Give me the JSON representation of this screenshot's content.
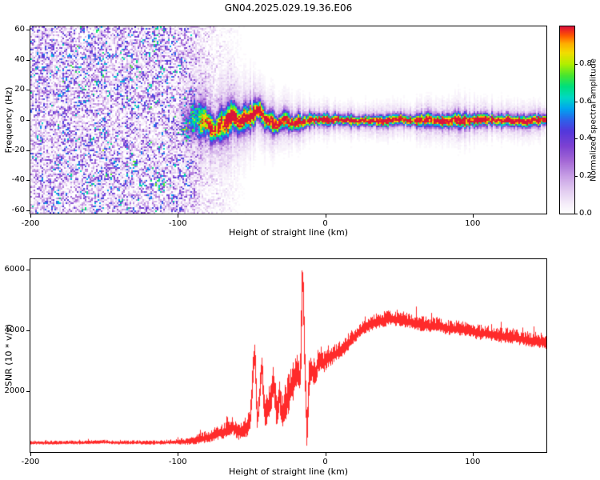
{
  "title": "GN04.2025.029.19.36.E06",
  "chart_data": [
    {
      "type": "heatmap",
      "title": "GN04.2025.029.19.36.E06",
      "xlabel": "Height of straight line (km)",
      "ylabel": "Frequency (Hz)",
      "xlim": [
        -200,
        150
      ],
      "ylim": [
        -62,
        62
      ],
      "xticks": [
        -200,
        -100,
        0,
        100
      ],
      "yticks": [
        -60,
        -40,
        -20,
        0,
        20,
        40,
        60
      ],
      "grid": false,
      "colorbar": {
        "label": "Normalized spectral amplitude",
        "lim": [
          0,
          1
        ],
        "ticks": [
          0.0,
          0.2,
          0.4,
          0.6,
          0.8
        ],
        "stops": [
          [
            0.0,
            "#ffffff"
          ],
          [
            0.05,
            "#f6eefa"
          ],
          [
            0.12,
            "#e3cdf1"
          ],
          [
            0.2,
            "#c89fe6"
          ],
          [
            0.28,
            "#a469d6"
          ],
          [
            0.36,
            "#7d42d2"
          ],
          [
            0.44,
            "#5438dc"
          ],
          [
            0.5,
            "#2e62ea"
          ],
          [
            0.56,
            "#00a4f0"
          ],
          [
            0.62,
            "#00d9c4"
          ],
          [
            0.68,
            "#00e07c"
          ],
          [
            0.74,
            "#4ae62e"
          ],
          [
            0.8,
            "#b2ef00"
          ],
          [
            0.86,
            "#f2de00"
          ],
          [
            0.91,
            "#ffad00"
          ],
          [
            0.95,
            "#ff5c00"
          ],
          [
            0.98,
            "#ef2b1e"
          ],
          [
            1.0,
            "#d9143c"
          ]
        ]
      },
      "noise": {
        "x_dense_end": -95,
        "x_sparse": -85,
        "sparse_level": 0.35,
        "x_fade_end": -52,
        "level": 0.5
      },
      "echo_band": {
        "center_hz": 0,
        "peak_profile": [
          [
            -100,
            0
          ],
          [
            -92,
            0.35
          ],
          [
            -85,
            0.65
          ],
          [
            -75,
            0.9
          ],
          [
            -60,
            0.95
          ],
          [
            150,
            1.0
          ]
        ],
        "width_profile_hz": [
          [
            -100,
            16
          ],
          [
            -80,
            14
          ],
          [
            -60,
            12
          ],
          [
            -45,
            10
          ],
          [
            -30,
            8
          ],
          [
            -15,
            6
          ],
          [
            0,
            5
          ],
          [
            30,
            4.5
          ],
          [
            60,
            5
          ],
          [
            80,
            6.5
          ],
          [
            90,
            7
          ],
          [
            100,
            5.5
          ],
          [
            150,
            5
          ]
        ]
      }
    },
    {
      "type": "line",
      "color": "#ff2b2b",
      "xlabel": "Height of straight line (km)",
      "ylabel": "SNR (10 * v/v)",
      "xlim": [
        -200,
        150
      ],
      "ylim": [
        0,
        6350
      ],
      "xticks": [
        -200,
        -100,
        0,
        100
      ],
      "yticks": [
        2000,
        4000,
        6000
      ],
      "profile": [
        [
          -200,
          300
        ],
        [
          -180,
          300
        ],
        [
          -160,
          310
        ],
        [
          -150,
          330
        ],
        [
          -140,
          300
        ],
        [
          -130,
          310
        ],
        [
          -120,
          300
        ],
        [
          -110,
          310
        ],
        [
          -100,
          330
        ],
        [
          -95,
          340
        ],
        [
          -90,
          360
        ],
        [
          -85,
          420
        ],
        [
          -80,
          480
        ],
        [
          -75,
          560
        ],
        [
          -70,
          640
        ],
        [
          -66,
          720
        ],
        [
          -63,
          820
        ],
        [
          -60,
          700
        ],
        [
          -57,
          640
        ],
        [
          -54,
          760
        ],
        [
          -51,
          1000
        ],
        [
          -48,
          3300
        ],
        [
          -46,
          900
        ],
        [
          -43,
          2900
        ],
        [
          -41,
          1100
        ],
        [
          -39,
          1400
        ],
        [
          -37,
          1700
        ],
        [
          -35,
          2300
        ],
        [
          -33,
          1300
        ],
        [
          -31,
          1900
        ],
        [
          -29,
          1100
        ],
        [
          -27,
          1500
        ],
        [
          -25,
          1800
        ],
        [
          -23,
          2100
        ],
        [
          -21,
          2300
        ],
        [
          -19,
          2500
        ],
        [
          -17,
          2300
        ],
        [
          -15.5,
          6200
        ],
        [
          -14,
          2800
        ],
        [
          -12.5,
          400
        ],
        [
          -11,
          2400
        ],
        [
          -9,
          2700
        ],
        [
          -7,
          2500
        ],
        [
          -5,
          2900
        ],
        [
          -3,
          3100
        ],
        [
          -1,
          2850
        ],
        [
          0,
          3000
        ],
        [
          3,
          3100
        ],
        [
          6,
          3200
        ],
        [
          10,
          3300
        ],
        [
          14,
          3500
        ],
        [
          18,
          3700
        ],
        [
          22,
          3900
        ],
        [
          26,
          4050
        ],
        [
          30,
          4200
        ],
        [
          35,
          4300
        ],
        [
          40,
          4350
        ],
        [
          45,
          4400
        ],
        [
          50,
          4350
        ],
        [
          55,
          4300
        ],
        [
          60,
          4250
        ],
        [
          65,
          4200
        ],
        [
          70,
          4150
        ],
        [
          75,
          4150
        ],
        [
          80,
          4100
        ],
        [
          85,
          4050
        ],
        [
          90,
          4050
        ],
        [
          95,
          4000
        ],
        [
          100,
          3950
        ],
        [
          105,
          3900
        ],
        [
          110,
          3900
        ],
        [
          115,
          3850
        ],
        [
          120,
          3800
        ],
        [
          125,
          3800
        ],
        [
          130,
          3750
        ],
        [
          135,
          3700
        ],
        [
          140,
          3650
        ],
        [
          145,
          3650
        ],
        [
          150,
          3600
        ]
      ],
      "noise_amp": [
        [
          -200,
          70
        ],
        [
          -130,
          70
        ],
        [
          -110,
          80
        ],
        [
          -100,
          100
        ],
        [
          -90,
          150
        ],
        [
          -80,
          220
        ],
        [
          -70,
          280
        ],
        [
          -60,
          330
        ],
        [
          -50,
          450
        ],
        [
          -40,
          580
        ],
        [
          -30,
          680
        ],
        [
          -25,
          700
        ],
        [
          -20,
          650
        ],
        [
          -15,
          600
        ],
        [
          -10,
          520
        ],
        [
          -5,
          450
        ],
        [
          0,
          400
        ],
        [
          10,
          340
        ],
        [
          20,
          310
        ],
        [
          40,
          290
        ],
        [
          70,
          270
        ],
        [
          100,
          265
        ],
        [
          150,
          285
        ]
      ]
    }
  ]
}
